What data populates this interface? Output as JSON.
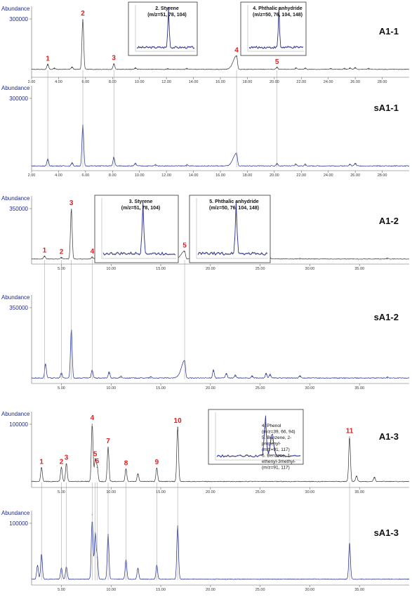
{
  "chart_data": [
    {
      "type": "line",
      "id": "A1-1",
      "ylabel": "Abundance",
      "y_tick": "300000",
      "ymax": 300000,
      "label": "A1-1",
      "color": "#333333",
      "xlim": [
        2.0,
        30.0
      ],
      "xticks": [
        "2.00",
        "4.00",
        "6.00",
        "8.00",
        "10.00",
        "12.00",
        "14.00",
        "16.00",
        "18.00",
        "20.00",
        "22.00",
        "24.00",
        "26.00",
        "28.00"
      ],
      "peaks": [
        {
          "x": 3.2,
          "y": 30000
        },
        {
          "x": 3.7,
          "y": 8000
        },
        {
          "x": 5.0,
          "y": 15000
        },
        {
          "x": 5.8,
          "y": 295000
        },
        {
          "x": 8.1,
          "y": 34000
        },
        {
          "x": 9.7,
          "y": 10000
        },
        {
          "x": 12.1,
          "y": 5000
        },
        {
          "x": 13.5,
          "y": 6000
        },
        {
          "x": 17.2,
          "y": 80000
        },
        {
          "x": 20.2,
          "y": 13000
        },
        {
          "x": 21.6,
          "y": 9000
        },
        {
          "x": 22.3,
          "y": 8000
        },
        {
          "x": 24.2,
          "y": 6000
        },
        {
          "x": 25.2,
          "y": 6000
        },
        {
          "x": 25.6,
          "y": 10000
        },
        {
          "x": 26.0,
          "y": 12000
        },
        {
          "x": 27.0,
          "y": 5000
        }
      ],
      "annotations": [
        {
          "text": "1",
          "x": 3.2,
          "y": 30000
        },
        {
          "text": "2",
          "x": 5.8,
          "y": 295000
        },
        {
          "text": "3",
          "x": 8.1,
          "y": 34000
        },
        {
          "text": "4",
          "x": 17.2,
          "y": 80000
        },
        {
          "text": "5",
          "x": 20.2,
          "y": 13000
        }
      ],
      "insets": [
        {
          "title": "2. Styrene",
          "subtitle": "(m/z=51, 78, 104)"
        },
        {
          "title": "4. Phthalic anhydride",
          "subtitle": "(m/z=50, 76, 104, 148)"
        }
      ]
    },
    {
      "type": "line",
      "id": "sA1-1",
      "ylabel": "Abundance",
      "y_tick": "300000",
      "ymax": 300000,
      "label": "sA1-1",
      "color": "#1f2b8f",
      "xlim": [
        2.0,
        30.0
      ],
      "xticks": [
        "2.00",
        "4.00",
        "6.00",
        "8.00",
        "10.00",
        "12.00",
        "14.00",
        "16.00",
        "18.00",
        "20.00",
        "22.00",
        "24.00",
        "26.00",
        "28.00"
      ],
      "peaks": [
        {
          "x": 3.2,
          "y": 30000
        },
        {
          "x": 5.0,
          "y": 14000
        },
        {
          "x": 5.8,
          "y": 180000
        },
        {
          "x": 8.1,
          "y": 40000
        },
        {
          "x": 9.7,
          "y": 12000
        },
        {
          "x": 11.2,
          "y": 6000
        },
        {
          "x": 13.5,
          "y": 5000
        },
        {
          "x": 17.2,
          "y": 55000
        },
        {
          "x": 20.2,
          "y": 12000
        },
        {
          "x": 21.6,
          "y": 9000
        },
        {
          "x": 22.3,
          "y": 8000
        },
        {
          "x": 25.6,
          "y": 10000
        },
        {
          "x": 26.0,
          "y": 13000
        }
      ],
      "annotations": []
    },
    {
      "type": "line",
      "id": "A1-2",
      "ylabel": "Abundance",
      "y_tick": "350000",
      "ymax": 350000,
      "label": "A1-2",
      "color": "#333333",
      "xlim": [
        2.0,
        40.0
      ],
      "xticks": [
        "5.00",
        "10.00",
        "15.00",
        "20.00",
        "25.00",
        "30.00",
        "35.00"
      ],
      "peaks": [
        {
          "x": 3.3,
          "y": 22000
        },
        {
          "x": 5.0,
          "y": 12000
        },
        {
          "x": 6.0,
          "y": 345000
        },
        {
          "x": 8.1,
          "y": 14000
        },
        {
          "x": 9.8,
          "y": 12000
        },
        {
          "x": 15.5,
          "y": 6000
        },
        {
          "x": 17.4,
          "y": 55000
        },
        {
          "x": 20.3,
          "y": 8000
        },
        {
          "x": 21.6,
          "y": 10000
        },
        {
          "x": 22.5,
          "y": 6000
        },
        {
          "x": 24.2,
          "y": 6000
        },
        {
          "x": 25.6,
          "y": 9000
        },
        {
          "x": 26.0,
          "y": 8000
        },
        {
          "x": 29.0,
          "y": 5000
        },
        {
          "x": 37.8,
          "y": 6000
        }
      ],
      "annotations": [
        {
          "text": "1",
          "x": 3.3,
          "y": 22000
        },
        {
          "text": "2",
          "x": 5.0,
          "y": 12000
        },
        {
          "text": "3",
          "x": 6.0,
          "y": 345000
        },
        {
          "text": "4",
          "x": 8.1,
          "y": 14000
        },
        {
          "text": "5",
          "x": 17.4,
          "y": 55000
        }
      ],
      "insets": [
        {
          "title": "3. Styrene",
          "subtitle": "(m/z=51, 78, 104)"
        },
        {
          "title": "5. Phthalic anhydride",
          "subtitle": "(m/z=50, 76, 104, 148)"
        }
      ]
    },
    {
      "type": "line",
      "id": "sA1-2",
      "ylabel": "Abundance",
      "y_tick": "350000",
      "ymax": 350000,
      "label": "sA1-2",
      "color": "#1f2b8f",
      "xlim": [
        2.0,
        40.0
      ],
      "xticks": [
        "5.00",
        "10.00",
        "15.00",
        "20.00",
        "25.00",
        "30.00",
        "35.00"
      ],
      "peaks": [
        {
          "x": 3.4,
          "y": 70000
        },
        {
          "x": 5.0,
          "y": 25000
        },
        {
          "x": 6.0,
          "y": 240000
        },
        {
          "x": 8.1,
          "y": 40000
        },
        {
          "x": 9.8,
          "y": 30000
        },
        {
          "x": 11.0,
          "y": 8000
        },
        {
          "x": 14.0,
          "y": 6000
        },
        {
          "x": 17.4,
          "y": 85000
        },
        {
          "x": 20.3,
          "y": 40000
        },
        {
          "x": 21.6,
          "y": 25000
        },
        {
          "x": 22.5,
          "y": 15000
        },
        {
          "x": 24.2,
          "y": 12000
        },
        {
          "x": 25.6,
          "y": 24000
        },
        {
          "x": 26.0,
          "y": 18000
        },
        {
          "x": 29.0,
          "y": 12000
        },
        {
          "x": 37.8,
          "y": 6000
        }
      ],
      "annotations": []
    },
    {
      "type": "line",
      "id": "A1-3",
      "ylabel": "Abundance",
      "y_tick": "100000",
      "ymax": 100000,
      "label": "A1-3",
      "color": "#333333",
      "xlim": [
        2.0,
        40.0
      ],
      "xticks": [
        "5.00",
        "10.00",
        "15.00",
        "20.00",
        "25.00",
        "30.00",
        "35.00"
      ],
      "peaks": [
        {
          "x": 3.0,
          "y": 25000
        },
        {
          "x": 5.0,
          "y": 25000
        },
        {
          "x": 5.5,
          "y": 32000
        },
        {
          "x": 8.1,
          "y": 100000
        },
        {
          "x": 8.4,
          "y": 38000
        },
        {
          "x": 8.6,
          "y": 26000
        },
        {
          "x": 9.7,
          "y": 60000
        },
        {
          "x": 11.5,
          "y": 22000
        },
        {
          "x": 12.7,
          "y": 14000
        },
        {
          "x": 14.6,
          "y": 24000
        },
        {
          "x": 16.7,
          "y": 95000
        },
        {
          "x": 34.0,
          "y": 78000
        },
        {
          "x": 34.7,
          "y": 10000
        },
        {
          "x": 36.5,
          "y": 8000
        }
      ],
      "annotations": [
        {
          "text": "1",
          "x": 3.0,
          "y": 25000
        },
        {
          "text": "2",
          "x": 5.0,
          "y": 25000
        },
        {
          "text": "3",
          "x": 5.5,
          "y": 32000
        },
        {
          "text": "4",
          "x": 8.1,
          "y": 100000
        },
        {
          "text": "5",
          "x": 8.4,
          "y": 38000
        },
        {
          "text": "6",
          "x": 8.6,
          "y": 26000
        },
        {
          "text": "7",
          "x": 9.7,
          "y": 60000
        },
        {
          "text": "8",
          "x": 11.5,
          "y": 22000
        },
        {
          "text": "9",
          "x": 14.6,
          "y": 24000
        },
        {
          "text": "10",
          "x": 16.7,
          "y": 95000
        },
        {
          "text": "11",
          "x": 34.0,
          "y": 78000
        }
      ],
      "insets": [
        {
          "lines": [
            "4. Phenol",
            "(m/z=39, 66, 94)",
            "5. Benzene, 2-",
            "propenyl-",
            "(m/z=91, 117)",
            "6. Benzene, 1-",
            "ethenyl-3methyl-",
            "(m/z=91, 117)"
          ]
        }
      ]
    },
    {
      "type": "line",
      "id": "sA1-3",
      "ylabel": "Abundance",
      "y_tick": "100000",
      "ymax": 100000,
      "label": "sA1-3",
      "color": "#1f2b8f",
      "xlim": [
        2.0,
        40.0
      ],
      "xticks": [
        "5.00",
        "10.00",
        "15.00",
        "20.00",
        "25.00",
        "30.00",
        "35.00"
      ],
      "peaks": [
        {
          "x": 2.6,
          "y": 25000
        },
        {
          "x": 3.0,
          "y": 45000
        },
        {
          "x": 5.0,
          "y": 20000
        },
        {
          "x": 5.5,
          "y": 22000
        },
        {
          "x": 8.1,
          "y": 115000
        },
        {
          "x": 8.4,
          "y": 80000
        },
        {
          "x": 8.6,
          "y": 40000
        },
        {
          "x": 9.7,
          "y": 80000
        },
        {
          "x": 11.5,
          "y": 35000
        },
        {
          "x": 12.7,
          "y": 20000
        },
        {
          "x": 14.6,
          "y": 25000
        },
        {
          "x": 16.7,
          "y": 95000
        },
        {
          "x": 34.0,
          "y": 65000
        }
      ],
      "annotations": []
    }
  ]
}
